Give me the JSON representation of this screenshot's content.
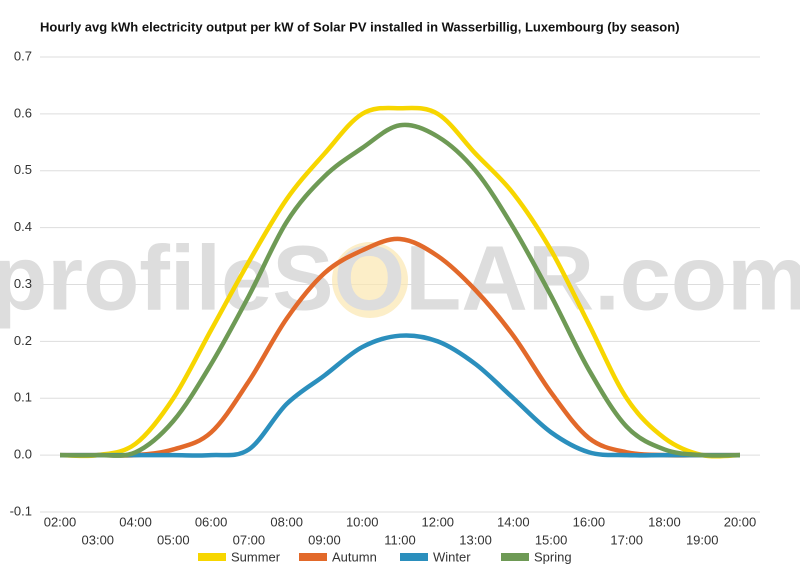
{
  "chart_data": {
    "type": "line",
    "title": "Hourly avg kWh electricity output per kW of Solar PV installed in Wasserbillig, Luxembourg (by season)",
    "watermark": "profileSOLAR.com",
    "categories": [
      "02:00",
      "03:00",
      "04:00",
      "05:00",
      "06:00",
      "07:00",
      "08:00",
      "09:00",
      "10:00",
      "11:00",
      "12:00",
      "13:00",
      "14:00",
      "15:00",
      "16:00",
      "17:00",
      "18:00",
      "19:00",
      "20:00"
    ],
    "series": [
      {
        "name": "Summer",
        "color": "#f7d600",
        "values": [
          0,
          0,
          0.02,
          0.1,
          0.22,
          0.34,
          0.45,
          0.53,
          0.6,
          0.61,
          0.6,
          0.53,
          0.46,
          0.36,
          0.23,
          0.1,
          0.03,
          0,
          0
        ]
      },
      {
        "name": "Autumn",
        "color": "#e2692a",
        "values": [
          0,
          0,
          0,
          0.01,
          0.04,
          0.13,
          0.24,
          0.32,
          0.36,
          0.38,
          0.35,
          0.29,
          0.21,
          0.11,
          0.03,
          0.005,
          0,
          0,
          0
        ]
      },
      {
        "name": "Winter",
        "color": "#2b8fbd",
        "values": [
          0,
          0,
          0,
          0,
          0,
          0.01,
          0.09,
          0.14,
          0.19,
          0.21,
          0.2,
          0.16,
          0.1,
          0.04,
          0.005,
          0,
          0,
          0,
          0
        ]
      },
      {
        "name": "Spring",
        "color": "#6e9a55",
        "values": [
          0,
          0,
          0.005,
          0.06,
          0.16,
          0.28,
          0.41,
          0.49,
          0.54,
          0.58,
          0.56,
          0.5,
          0.4,
          0.28,
          0.15,
          0.05,
          0.01,
          0,
          0
        ]
      }
    ],
    "ylim": [
      -0.1,
      0.7
    ],
    "yticks": [
      -0.1,
      {
        "value": 0,
        "label": "0.0"
      },
      0.1,
      0.2,
      0.3,
      0.4,
      0.5,
      0.6,
      0.7
    ],
    "grid": true,
    "legend": "bottom"
  }
}
